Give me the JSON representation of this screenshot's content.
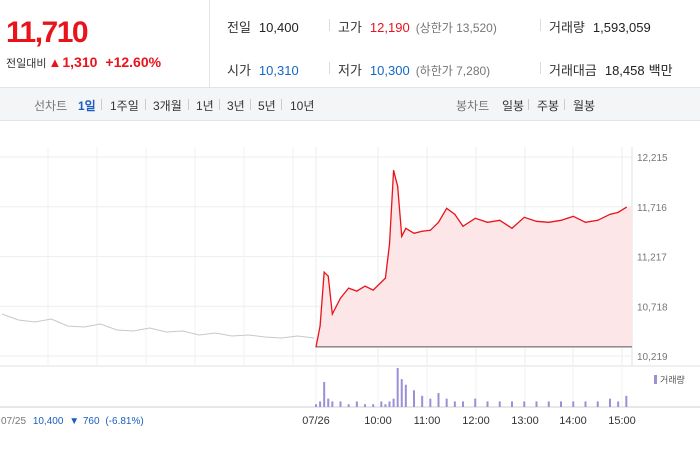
{
  "quote": {
    "price": "11,710",
    "diff_label": "전일대비",
    "diff_arrow": "▲",
    "diff_amount": "1,310",
    "diff_pct": "+12.60%",
    "prev_close": {
      "label": "전일",
      "value": "10,400"
    },
    "open": {
      "label": "시가",
      "value": "10,310"
    },
    "high": {
      "label": "고가",
      "value": "12,190",
      "sub": "(상한가 13,520)"
    },
    "low": {
      "label": "저가",
      "value": "10,300",
      "sub": "(하한가 7,280)"
    },
    "volume": {
      "label": "거래량",
      "value": "1,593,059"
    },
    "amount": {
      "label": "거래대금",
      "value": "18,458",
      "unit": "백만"
    }
  },
  "toolbar": {
    "line_label": "선차트",
    "line_periods": [
      "1일",
      "1주일",
      "3개월",
      "1년",
      "3년",
      "5년",
      "10년"
    ],
    "active_period": "1일",
    "candle_label": "봉차트",
    "candle_periods": [
      "일봉",
      "주봉",
      "월봉"
    ]
  },
  "colors": {
    "up": "#e8131b",
    "down": "#1267c7",
    "accent": "#1a5fbf",
    "area": "#fde6e7",
    "prev_line": "#c8c8c8",
    "volume": "#9b8fd6"
  },
  "chart_data": {
    "type": "line",
    "y_ticks": [
      "12,215",
      "11,716",
      "11,217",
      "10,718",
      "10,219"
    ],
    "ylim": [
      10219,
      12215
    ],
    "x_ticks": [
      "07/26",
      "10:00",
      "11:00",
      "12:00",
      "13:00",
      "14:00",
      "15:00"
    ],
    "prev_day": {
      "label": "07/25",
      "close": "10,400",
      "change_arrow": "▼",
      "change": "760",
      "change_pct": "(-6.81%)",
      "series": [
        10640,
        10580,
        10560,
        10590,
        10520,
        10510,
        10540,
        10480,
        10470,
        10500,
        10460,
        10470,
        10430,
        10450,
        10420,
        10430,
        10410,
        10400,
        10420,
        10400
      ]
    },
    "today": {
      "name": "",
      "times": [
        "09:00",
        "09:05",
        "09:10",
        "09:15",
        "09:20",
        "09:30",
        "09:40",
        "09:50",
        "10:00",
        "10:10",
        "10:20",
        "10:25",
        "10:30",
        "10:35",
        "10:40",
        "10:45",
        "10:50",
        "11:00",
        "11:10",
        "11:20",
        "11:30",
        "11:40",
        "11:50",
        "12:00",
        "12:15",
        "12:30",
        "12:45",
        "13:00",
        "13:15",
        "13:30",
        "13:45",
        "14:00",
        "14:15",
        "14:30",
        "14:45",
        "15:00",
        "15:10",
        "15:20"
      ],
      "values": [
        10310,
        10520,
        11060,
        11020,
        10640,
        10800,
        10900,
        10870,
        10920,
        10880,
        10960,
        11000,
        11340,
        12080,
        11920,
        11420,
        11500,
        11450,
        11470,
        11480,
        11560,
        11700,
        11640,
        11520,
        11600,
        11560,
        11580,
        11500,
        11610,
        11570,
        11560,
        11580,
        11620,
        11560,
        11580,
        11640,
        11660,
        11710
      ]
    },
    "volume_label": "거래량",
    "volume": [
      1,
      2,
      9,
      3,
      2,
      2,
      1,
      2,
      1,
      1,
      2,
      1,
      2,
      3,
      14,
      10,
      8,
      6,
      4,
      3,
      5,
      3,
      2,
      2,
      3,
      2,
      2,
      2,
      2,
      2,
      2,
      2,
      2,
      2,
      2,
      3,
      2,
      4
    ]
  }
}
